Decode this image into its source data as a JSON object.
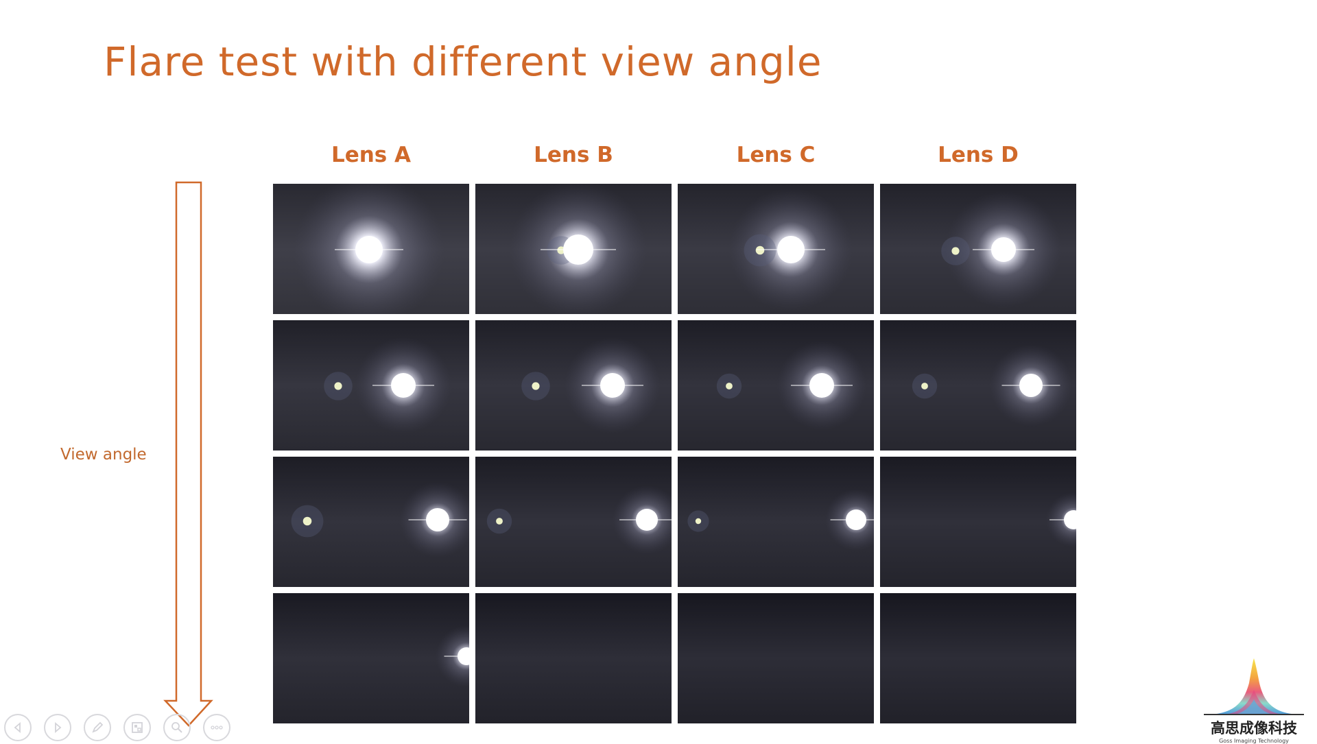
{
  "slide": {
    "title": "Flare test with different view angle",
    "lenses": [
      "Lens A",
      "Lens B",
      "Lens C",
      "Lens D"
    ],
    "side_label": "View angle",
    "accent_color": "#d0692a"
  },
  "logo": {
    "cn": "高思成像科技",
    "en": "Goss Imaging Technology"
  },
  "toolbar": {
    "icons": [
      "prev-slide-icon",
      "next-slide-icon",
      "pen-icon",
      "slides-grid-icon",
      "zoom-icon",
      "more-icon"
    ]
  }
}
